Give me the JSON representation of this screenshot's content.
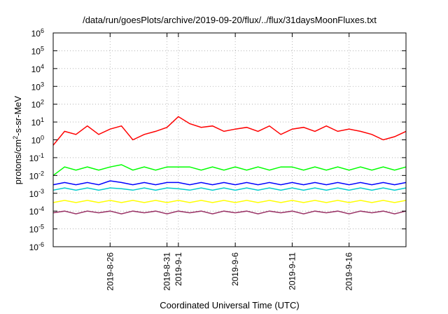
{
  "chart_data": {
    "type": "line",
    "title": "/data/run/goesPlots/archive/2019-09-20/flux/../flux/31daysMoonFluxes.txt",
    "xlabel": "Coordinated Universal Time (UTC)",
    "ylabel": {
      "pre": "protons/cm",
      "sup": "2",
      "post": "-s-sr-MeV"
    },
    "y_scale": "log",
    "ylim": [
      1e-06,
      1000000.0
    ],
    "xlim": [
      "2019-08-21",
      "2019-09-21"
    ],
    "grid": true,
    "legend": "none",
    "y_ticks": [
      {
        "value": 1000000.0,
        "base": "10",
        "exp": "6"
      },
      {
        "value": 100000.0,
        "base": "10",
        "exp": "5"
      },
      {
        "value": 10000.0,
        "base": "10",
        "exp": "4"
      },
      {
        "value": 1000.0,
        "base": "10",
        "exp": "3"
      },
      {
        "value": 100.0,
        "base": "10",
        "exp": "2"
      },
      {
        "value": 10.0,
        "base": "10",
        "exp": "1"
      },
      {
        "value": 1.0,
        "base": "10",
        "exp": "0"
      },
      {
        "value": 0.1,
        "base": "10",
        "exp": "-1"
      },
      {
        "value": 0.01,
        "base": "10",
        "exp": "-2"
      },
      {
        "value": 0.001,
        "base": "10",
        "exp": "-3"
      },
      {
        "value": 0.0001,
        "base": "10",
        "exp": "-4"
      },
      {
        "value": 1e-05,
        "base": "10",
        "exp": "-5"
      },
      {
        "value": 1e-06,
        "base": "10",
        "exp": "-6"
      }
    ],
    "x_ticks": [
      "2019-8-26",
      "2019-8-31",
      "2019-9-1",
      "2019-9-6",
      "2019-9-11",
      "2019-9-16"
    ],
    "x": [
      "2019-08-21",
      "2019-08-22",
      "2019-08-23",
      "2019-08-24",
      "2019-08-25",
      "2019-08-26",
      "2019-08-27",
      "2019-08-28",
      "2019-08-29",
      "2019-08-30",
      "2019-08-31",
      "2019-09-01",
      "2019-09-02",
      "2019-09-03",
      "2019-09-04",
      "2019-09-05",
      "2019-09-06",
      "2019-09-07",
      "2019-09-08",
      "2019-09-09",
      "2019-09-10",
      "2019-09-11",
      "2019-09-12",
      "2019-09-13",
      "2019-09-14",
      "2019-09-15",
      "2019-09-16",
      "2019-09-17",
      "2019-09-18",
      "2019-09-19",
      "2019-09-20",
      "2019-09-21"
    ],
    "series": [
      {
        "color": "#ff0000",
        "values": [
          0.5,
          3,
          2,
          6,
          2,
          4,
          6,
          1,
          2,
          3,
          5,
          20,
          8,
          5,
          6,
          3,
          4,
          5,
          3,
          6,
          2,
          4,
          5,
          3,
          6,
          3,
          4,
          3,
          2,
          1,
          1.5,
          3
        ]
      },
      {
        "color": "#00ff00",
        "values": [
          0.01,
          0.03,
          0.02,
          0.03,
          0.02,
          0.03,
          0.04,
          0.02,
          0.03,
          0.02,
          0.03,
          0.03,
          0.03,
          0.02,
          0.03,
          0.02,
          0.03,
          0.02,
          0.03,
          0.02,
          0.03,
          0.03,
          0.02,
          0.03,
          0.02,
          0.03,
          0.02,
          0.03,
          0.02,
          0.03,
          0.02,
          0.03
        ]
      },
      {
        "color": "#0000ff",
        "values": [
          0.003,
          0.004,
          0.003,
          0.004,
          0.003,
          0.005,
          0.004,
          0.003,
          0.004,
          0.003,
          0.004,
          0.004,
          0.003,
          0.004,
          0.003,
          0.004,
          0.003,
          0.004,
          0.003,
          0.004,
          0.003,
          0.004,
          0.003,
          0.004,
          0.003,
          0.004,
          0.003,
          0.004,
          0.003,
          0.004,
          0.003,
          0.004
        ]
      },
      {
        "color": "#00cccc",
        "values": [
          0.0015,
          0.002,
          0.0015,
          0.002,
          0.0015,
          0.002,
          0.0018,
          0.0015,
          0.002,
          0.0015,
          0.002,
          0.0018,
          0.0015,
          0.002,
          0.0015,
          0.002,
          0.0015,
          0.002,
          0.0015,
          0.002,
          0.0015,
          0.002,
          0.0015,
          0.002,
          0.0015,
          0.002,
          0.0015,
          0.002,
          0.0015,
          0.002,
          0.0015,
          0.002
        ]
      },
      {
        "color": "#ffff00",
        "values": [
          0.0003,
          0.0004,
          0.0003,
          0.0004,
          0.0003,
          0.0004,
          0.0003,
          0.0004,
          0.0003,
          0.0004,
          0.0003,
          0.0004,
          0.0003,
          0.0004,
          0.0003,
          0.0004,
          0.0003,
          0.0004,
          0.0003,
          0.0004,
          0.0003,
          0.0004,
          0.0003,
          0.0004,
          0.0003,
          0.0004,
          0.0003,
          0.0004,
          0.0003,
          0.0004,
          0.0003,
          0.0004
        ]
      },
      {
        "color": "#993366",
        "values": [
          8e-05,
          0.0001,
          7e-05,
          0.0001,
          8e-05,
          0.0001,
          7e-05,
          0.0001,
          8e-05,
          0.0001,
          7e-05,
          0.0001,
          8e-05,
          0.0001,
          7e-05,
          0.0001,
          8e-05,
          0.0001,
          7e-05,
          0.0001,
          8e-05,
          0.0001,
          7e-05,
          0.0001,
          8e-05,
          0.0001,
          7e-05,
          0.0001,
          8e-05,
          0.0001,
          7e-05,
          0.0001
        ]
      }
    ]
  }
}
